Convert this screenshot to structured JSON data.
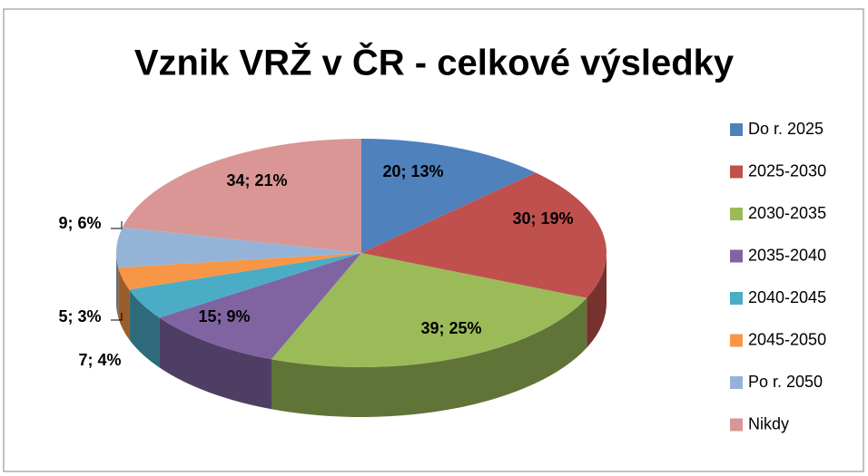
{
  "chart_data": {
    "type": "pie",
    "title": "Vznik VRŽ v ČR - celkové výsledky",
    "categories": [
      "Do r. 2025",
      "2025-2030",
      "2030-2035",
      "2035-2040",
      "2040-2045",
      "2045-2050",
      "Po r. 2050",
      "Nikdy"
    ],
    "values": [
      20,
      30,
      39,
      15,
      7,
      5,
      9,
      34
    ],
    "value_labels": [
      "20; 13%",
      "30; 19%",
      "39; 25%",
      "15; 9%",
      "7; 4%",
      "5; 3%",
      "9; 6%",
      "34; 21%"
    ],
    "colors": [
      "#4f81bd",
      "#c0504d",
      "#9bbb59",
      "#8064a2",
      "#4bacc6",
      "#f79646",
      "#95b3d7",
      "#d99694"
    ],
    "legend": "right"
  }
}
